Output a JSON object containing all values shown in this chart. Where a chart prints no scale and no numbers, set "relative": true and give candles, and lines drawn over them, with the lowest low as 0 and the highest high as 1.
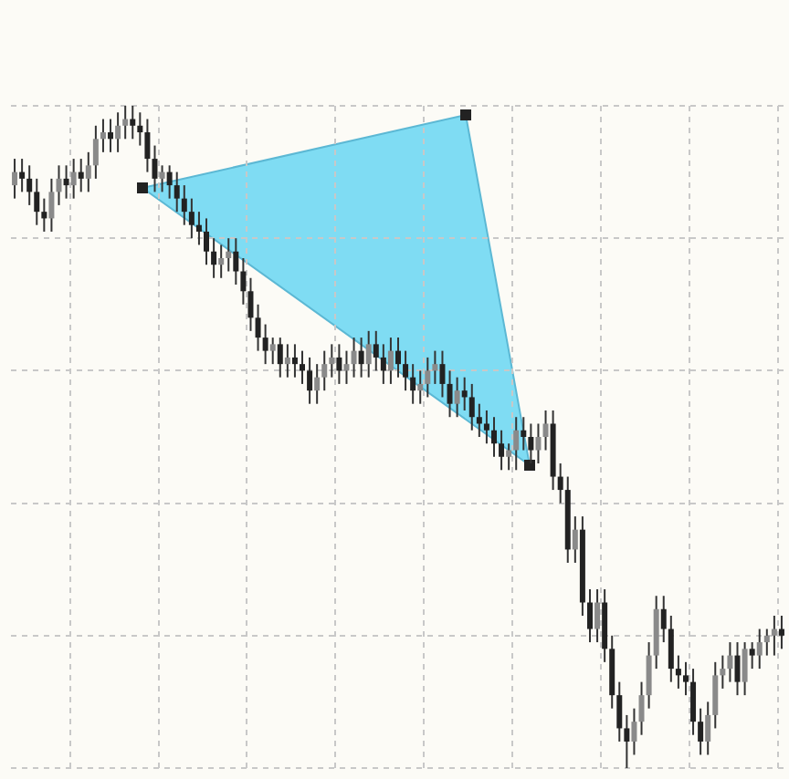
{
  "chart_data": {
    "type": "candlestick",
    "relative": true,
    "grid": true,
    "categories": [
      null,
      null,
      null,
      null,
      null,
      null,
      null,
      null,
      null,
      null,
      null,
      null,
      null,
      null,
      null,
      null,
      null,
      null,
      null,
      null,
      null,
      null,
      null,
      null,
      null,
      null,
      null,
      null,
      null,
      null,
      null,
      null,
      null,
      null,
      null,
      null,
      null,
      null,
      null,
      null,
      null,
      null,
      null,
      null,
      null,
      null,
      null,
      null,
      null,
      null,
      null,
      null,
      null,
      null,
      null,
      null,
      null,
      null,
      null,
      null,
      null,
      null,
      null,
      null,
      null,
      null,
      null,
      null,
      null,
      null,
      null,
      null,
      null,
      null,
      null,
      null,
      null,
      null,
      null,
      null,
      null,
      null,
      null,
      null,
      null,
      null,
      null,
      null,
      null,
      null,
      null,
      null,
      null,
      null,
      null,
      null,
      null,
      null,
      null,
      null,
      null,
      null,
      null,
      null,
      null
    ],
    "ohlc": [
      [
        0.88,
        0.92,
        0.86,
        0.9
      ],
      [
        0.9,
        0.92,
        0.87,
        0.89
      ],
      [
        0.89,
        0.91,
        0.85,
        0.87
      ],
      [
        0.87,
        0.89,
        0.82,
        0.84
      ],
      [
        0.84,
        0.86,
        0.81,
        0.83
      ],
      [
        0.83,
        0.89,
        0.81,
        0.87
      ],
      [
        0.87,
        0.91,
        0.85,
        0.89
      ],
      [
        0.89,
        0.91,
        0.86,
        0.88
      ],
      [
        0.88,
        0.92,
        0.86,
        0.9
      ],
      [
        0.9,
        0.92,
        0.87,
        0.89
      ],
      [
        0.89,
        0.93,
        0.87,
        0.91
      ],
      [
        0.91,
        0.97,
        0.89,
        0.95
      ],
      [
        0.95,
        0.98,
        0.93,
        0.96
      ],
      [
        0.96,
        0.98,
        0.93,
        0.95
      ],
      [
        0.95,
        0.99,
        0.93,
        0.97
      ],
      [
        0.97,
        1.0,
        0.95,
        0.98
      ],
      [
        0.98,
        1.0,
        0.95,
        0.97
      ],
      [
        0.97,
        0.99,
        0.94,
        0.96
      ],
      [
        0.96,
        0.98,
        0.9,
        0.92
      ],
      [
        0.92,
        0.94,
        0.87,
        0.89
      ],
      [
        0.89,
        0.91,
        0.87,
        0.9
      ],
      [
        0.9,
        0.91,
        0.86,
        0.88
      ],
      [
        0.88,
        0.9,
        0.84,
        0.86
      ],
      [
        0.86,
        0.88,
        0.82,
        0.84
      ],
      [
        0.84,
        0.86,
        0.8,
        0.82
      ],
      [
        0.82,
        0.84,
        0.79,
        0.81
      ],
      [
        0.81,
        0.83,
        0.76,
        0.78
      ],
      [
        0.78,
        0.8,
        0.74,
        0.76
      ],
      [
        0.76,
        0.79,
        0.74,
        0.77
      ],
      [
        0.77,
        0.8,
        0.75,
        0.78
      ],
      [
        0.78,
        0.8,
        0.73,
        0.75
      ],
      [
        0.75,
        0.77,
        0.7,
        0.72
      ],
      [
        0.72,
        0.74,
        0.66,
        0.68
      ],
      [
        0.68,
        0.7,
        0.63,
        0.65
      ],
      [
        0.65,
        0.67,
        0.61,
        0.63
      ],
      [
        0.63,
        0.65,
        0.61,
        0.64
      ],
      [
        0.64,
        0.65,
        0.59,
        0.61
      ],
      [
        0.61,
        0.64,
        0.59,
        0.62
      ],
      [
        0.62,
        0.64,
        0.59,
        0.61
      ],
      [
        0.61,
        0.63,
        0.58,
        0.6
      ],
      [
        0.6,
        0.62,
        0.55,
        0.57
      ],
      [
        0.57,
        0.61,
        0.55,
        0.59
      ],
      [
        0.59,
        0.63,
        0.57,
        0.61
      ],
      [
        0.61,
        0.64,
        0.59,
        0.62
      ],
      [
        0.62,
        0.64,
        0.58,
        0.6
      ],
      [
        0.6,
        0.63,
        0.58,
        0.61
      ],
      [
        0.61,
        0.65,
        0.59,
        0.63
      ],
      [
        0.63,
        0.65,
        0.59,
        0.61
      ],
      [
        0.61,
        0.66,
        0.59,
        0.64
      ],
      [
        0.64,
        0.66,
        0.6,
        0.62
      ],
      [
        0.62,
        0.64,
        0.58,
        0.6
      ],
      [
        0.6,
        0.65,
        0.58,
        0.63
      ],
      [
        0.63,
        0.65,
        0.59,
        0.61
      ],
      [
        0.61,
        0.63,
        0.57,
        0.59
      ],
      [
        0.59,
        0.61,
        0.55,
        0.57
      ],
      [
        0.57,
        0.6,
        0.55,
        0.58
      ],
      [
        0.58,
        0.62,
        0.56,
        0.6
      ],
      [
        0.6,
        0.63,
        0.58,
        0.61
      ],
      [
        0.61,
        0.63,
        0.56,
        0.58
      ],
      [
        0.58,
        0.6,
        0.53,
        0.55
      ],
      [
        0.55,
        0.59,
        0.53,
        0.57
      ],
      [
        0.57,
        0.59,
        0.54,
        0.56
      ],
      [
        0.56,
        0.58,
        0.51,
        0.53
      ],
      [
        0.53,
        0.55,
        0.5,
        0.52
      ],
      [
        0.52,
        0.54,
        0.49,
        0.51
      ],
      [
        0.51,
        0.53,
        0.47,
        0.49
      ],
      [
        0.49,
        0.51,
        0.45,
        0.47
      ],
      [
        0.47,
        0.49,
        0.45,
        0.48
      ],
      [
        0.48,
        0.53,
        0.45,
        0.51
      ],
      [
        0.51,
        0.53,
        0.48,
        0.5
      ],
      [
        0.5,
        0.52,
        0.46,
        0.48
      ],
      [
        0.48,
        0.52,
        0.46,
        0.5
      ],
      [
        0.5,
        0.54,
        0.48,
        0.52
      ],
      [
        0.52,
        0.54,
        0.42,
        0.44
      ],
      [
        0.44,
        0.46,
        0.4,
        0.42
      ],
      [
        0.42,
        0.44,
        0.31,
        0.33
      ],
      [
        0.33,
        0.38,
        0.31,
        0.36
      ],
      [
        0.36,
        0.38,
        0.23,
        0.25
      ],
      [
        0.25,
        0.27,
        0.19,
        0.21
      ],
      [
        0.21,
        0.27,
        0.19,
        0.25
      ],
      [
        0.25,
        0.27,
        0.16,
        0.18
      ],
      [
        0.18,
        0.2,
        0.09,
        0.11
      ],
      [
        0.11,
        0.13,
        0.04,
        0.06
      ],
      [
        0.06,
        0.08,
        0.0,
        0.04
      ],
      [
        0.04,
        0.09,
        0.02,
        0.07
      ],
      [
        0.07,
        0.13,
        0.05,
        0.11
      ],
      [
        0.11,
        0.19,
        0.09,
        0.17
      ],
      [
        0.17,
        0.26,
        0.15,
        0.24
      ],
      [
        0.24,
        0.26,
        0.19,
        0.21
      ],
      [
        0.21,
        0.23,
        0.13,
        0.15
      ],
      [
        0.15,
        0.17,
        0.12,
        0.14
      ],
      [
        0.14,
        0.16,
        0.11,
        0.13
      ],
      [
        0.13,
        0.15,
        0.05,
        0.07
      ],
      [
        0.07,
        0.09,
        0.02,
        0.04
      ],
      [
        0.04,
        0.1,
        0.02,
        0.08
      ],
      [
        0.08,
        0.16,
        0.06,
        0.14
      ],
      [
        0.14,
        0.17,
        0.12,
        0.15
      ],
      [
        0.15,
        0.19,
        0.13,
        0.17
      ],
      [
        0.17,
        0.19,
        0.11,
        0.13
      ],
      [
        0.13,
        0.19,
        0.11,
        0.18
      ],
      [
        0.18,
        0.19,
        0.15,
        0.17
      ],
      [
        0.17,
        0.21,
        0.15,
        0.19
      ],
      [
        0.19,
        0.21,
        0.17,
        0.2
      ],
      [
        0.2,
        0.23,
        0.17,
        0.21
      ],
      [
        0.21,
        0.23,
        0.18,
        0.2
      ]
    ]
  }
}
